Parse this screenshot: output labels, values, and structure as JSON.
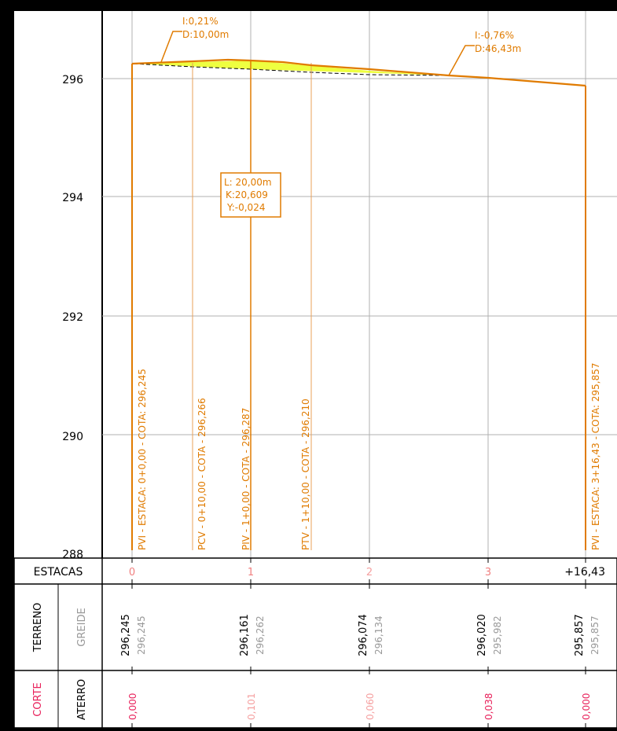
{
  "elevation_ticks": [
    "296",
    "294",
    "292",
    "290",
    "288"
  ],
  "annotations": {
    "grade_left": [
      "I:0,21%",
      "D:10,00m"
    ],
    "grade_right": [
      "I:-0,76%",
      "D:46,43m"
    ],
    "curve_box": [
      "L: 20,00m",
      "K:20,609",
      "Y:-0,024"
    ]
  },
  "vertical_labels": [
    "PVI - ESTACA: 0+0,00 - COTA: 296,245",
    "PCV - 0+10,00  -  COTA - 296,266",
    "PIV - 1+0,00  -  COTA - 296,287",
    "PTV - 1+10,00  -  COTA - 296,210",
    "PVI - ESTACA: 3+16,43 - COTA: 295,857"
  ],
  "table": {
    "estacas_header": "ESTACAS",
    "terreno_header": "TERRENO",
    "greide_header": "GREIDE",
    "corte_header": "CORTE",
    "aterro_header": "ATERRO",
    "estacas": [
      "0",
      "1",
      "2",
      "3",
      "+16,43"
    ],
    "terreno": [
      "296,245",
      "296,161",
      "296,074",
      "296,020",
      "295,857"
    ],
    "greide": [
      "296,245",
      "296,262",
      "296,134",
      "295,982",
      "295,857"
    ],
    "corte": [
      "0,000",
      "0,101",
      "0,060",
      "0,038",
      "0,000"
    ]
  },
  "colors": {
    "profile_orange": "#E07B00",
    "tan_line": "#E8A05A",
    "terrain_yellow": "#E8FF00",
    "corte_pink": "#E8205A",
    "grid_gray": "#B0B0B0"
  }
}
